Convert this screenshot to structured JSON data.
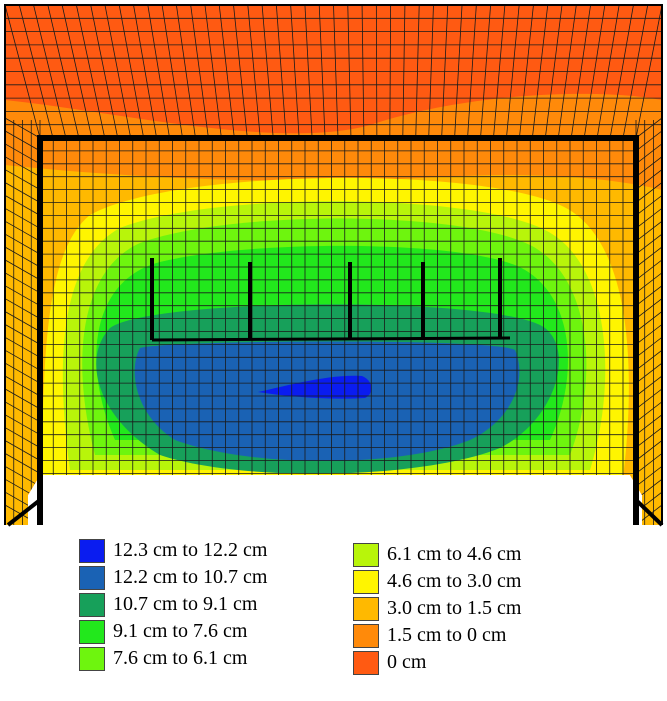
{
  "legend": {
    "items": [
      {
        "label": "12.3 cm to 12.2 cm",
        "color": "#0a1cf0"
      },
      {
        "label": "12.2 cm to 10.7 cm",
        "color": "#1a62b4"
      },
      {
        "label": "10.7 cm to 9.1 cm",
        "color": "#17a05a"
      },
      {
        "label": "9.1 cm to 7.6 cm",
        "color": "#22e81c"
      },
      {
        "label": "7.6 cm to 6.1 cm",
        "color": "#6ef50e"
      },
      {
        "label": "6.1 cm to 4.6 cm",
        "color": "#b8f50a"
      },
      {
        "label": "4.6 cm to 3.0 cm",
        "color": "#fff500"
      },
      {
        "label": "3.0 cm to 1.5 cm",
        "color": "#ffb900"
      },
      {
        "label": "1.5 cm to 0 cm",
        "color": "#ff8a0a"
      },
      {
        "label": "0 cm",
        "color": "#ff5a12"
      }
    ]
  },
  "colors": {
    "mesh_line": "#1a1a1a",
    "frame": "#000000",
    "background": "#ffffff"
  }
}
